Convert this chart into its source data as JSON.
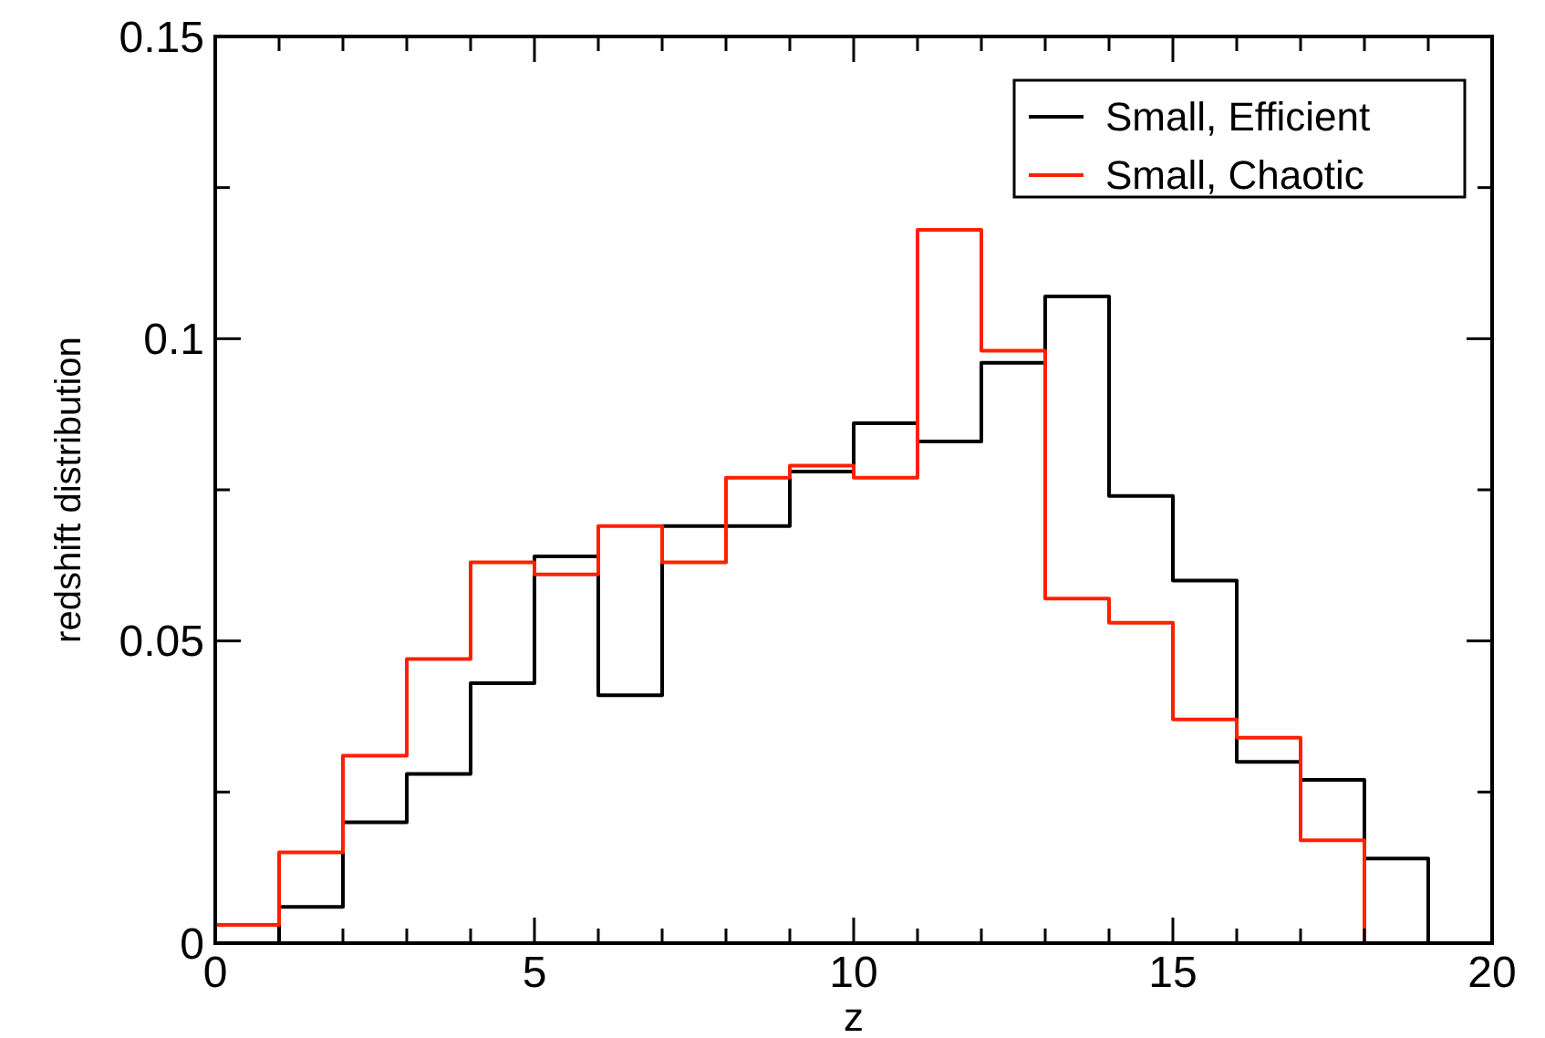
{
  "chart_data": {
    "type": "histogram",
    "xlabel": "z",
    "ylabel": "redshift distribution",
    "xlim": [
      0,
      20
    ],
    "ylim": [
      0,
      0.15
    ],
    "xticks": [
      0,
      {
        "value": 1,
        "label": null
      },
      {
        "value": 2,
        "label": null
      },
      {
        "value": 3,
        "label": null
      },
      {
        "value": 4,
        "label": null
      },
      5,
      {
        "value": 6,
        "label": null
      },
      {
        "value": 7,
        "label": null
      },
      {
        "value": 8,
        "label": null
      },
      {
        "value": 9,
        "label": null
      },
      10,
      {
        "value": 11,
        "label": null
      },
      {
        "value": 12,
        "label": null
      },
      {
        "value": 13,
        "label": null
      },
      {
        "value": 14,
        "label": null
      },
      15,
      {
        "value": 16,
        "label": null
      },
      {
        "value": 17,
        "label": null
      },
      {
        "value": 18,
        "label": null
      },
      {
        "value": 19,
        "label": null
      },
      20
    ],
    "yticks": [
      0,
      {
        "value": 0.025,
        "label": null
      },
      0.05,
      {
        "value": 0.075,
        "label": null
      },
      0.1,
      {
        "value": 0.125,
        "label": null
      },
      0.15
    ],
    "grid": false,
    "legend": "top right",
    "bins": [
      0,
      1,
      2,
      3,
      4,
      5,
      6,
      7,
      8,
      9,
      10,
      11,
      12,
      13,
      14,
      15,
      16,
      17,
      18,
      19
    ],
    "series": [
      {
        "name": "Small, Efficient",
        "color": "#000000",
        "values": [
          0,
          0.006,
          0.02,
          0.028,
          0.043,
          0.064,
          0.041,
          0.069,
          0.069,
          0.078,
          0.086,
          0.083,
          0.096,
          0.107,
          0.074,
          0.06,
          0.03,
          0.027,
          0.014
        ]
      },
      {
        "name": "Small, Chaotic",
        "color": "#ff2000",
        "values": [
          0.003,
          0.015,
          0.031,
          0.047,
          0.063,
          0.061,
          0.069,
          0.063,
          0.077,
          0.079,
          0.077,
          0.118,
          0.098,
          0.057,
          0.053,
          0.037,
          0.034,
          0.017,
          0
        ]
      }
    ]
  }
}
